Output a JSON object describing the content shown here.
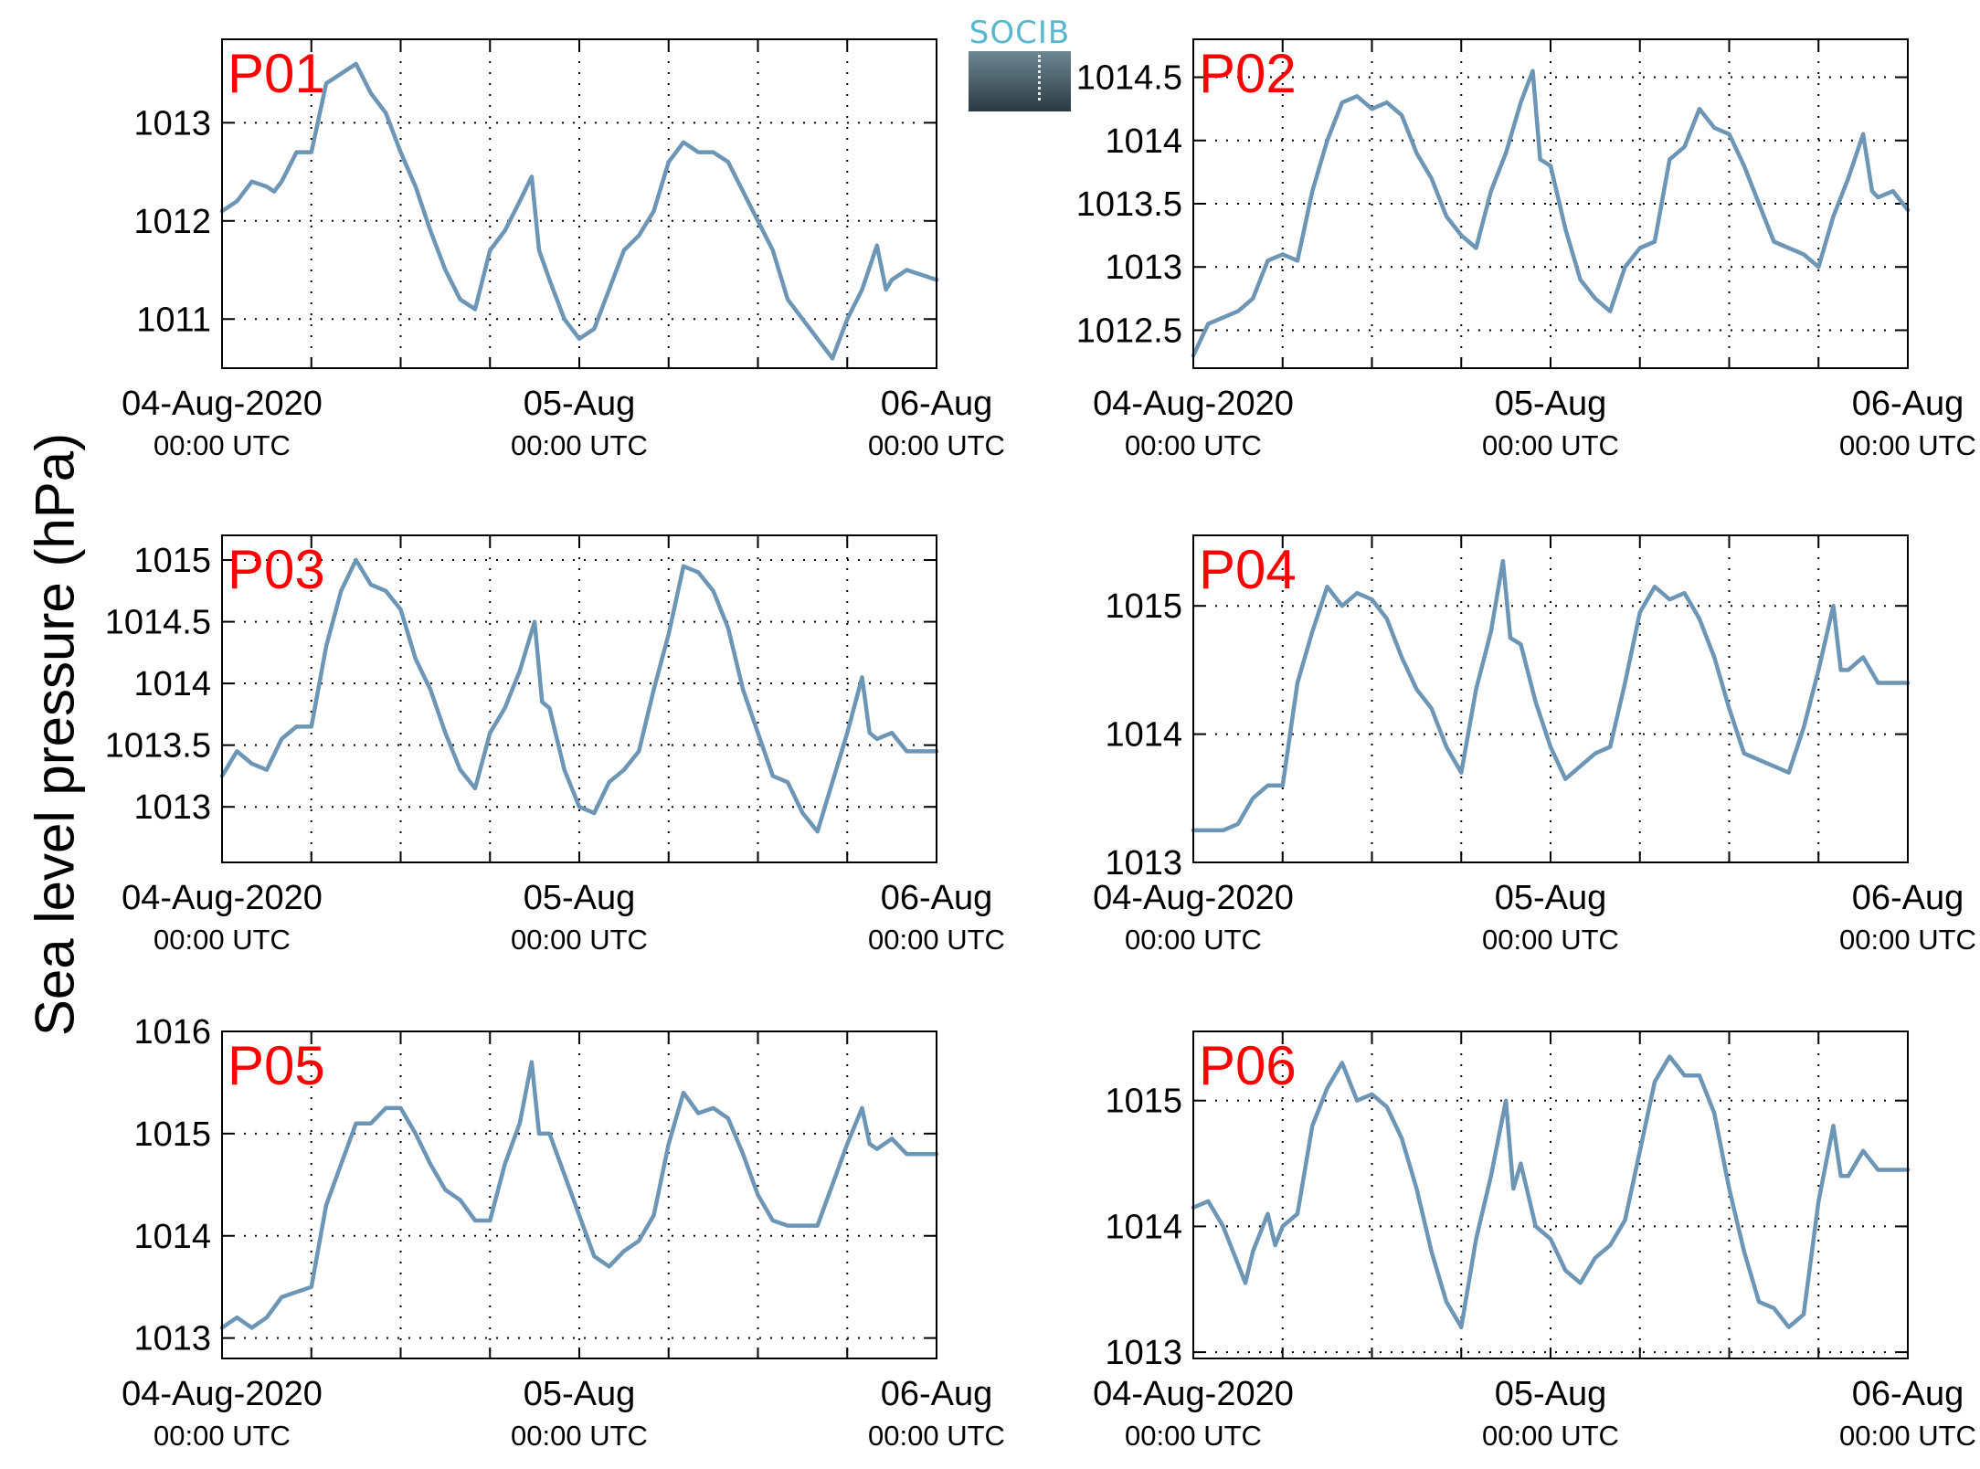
{
  "y_axis_title": "Sea level pressure (hPa)",
  "logo_text": "SOCIB",
  "colors": {
    "line": "#6d96b6",
    "panel_label": "#ff0000",
    "grid": "#000000"
  },
  "chart_data": [
    {
      "type": "line",
      "label": "P01",
      "ylim": [
        1010.5,
        1013.85
      ],
      "yticks": [
        1011,
        1012,
        1013
      ],
      "x_ticks": [
        {
          "line1": "04-Aug-2020",
          "line2": "00:00 UTC"
        },
        {
          "line1": "05-Aug",
          "line2": "00:00 UTC"
        },
        {
          "line1": "06-Aug",
          "line2": "00:00 UTC"
        }
      ],
      "x_range_hours": [
        0,
        48
      ],
      "points": [
        [
          0,
          1012.1
        ],
        [
          1,
          1012.2
        ],
        [
          2,
          1012.4
        ],
        [
          3,
          1012.35
        ],
        [
          3.5,
          1012.3
        ],
        [
          4,
          1012.4
        ],
        [
          5,
          1012.7
        ],
        [
          6,
          1012.7
        ],
        [
          7,
          1013.4
        ],
        [
          8,
          1013.5
        ],
        [
          9,
          1013.6
        ],
        [
          10,
          1013.3
        ],
        [
          11,
          1013.1
        ],
        [
          12,
          1012.7
        ],
        [
          13,
          1012.35
        ],
        [
          14,
          1011.9
        ],
        [
          15,
          1011.5
        ],
        [
          16,
          1011.2
        ],
        [
          17,
          1011.1
        ],
        [
          18,
          1011.7
        ],
        [
          19,
          1011.9
        ],
        [
          20,
          1012.2
        ],
        [
          20.8,
          1012.45
        ],
        [
          21.3,
          1011.7
        ],
        [
          22,
          1011.4
        ],
        [
          23,
          1011.0
        ],
        [
          24,
          1010.8
        ],
        [
          25,
          1010.9
        ],
        [
          26,
          1011.3
        ],
        [
          27,
          1011.7
        ],
        [
          28,
          1011.85
        ],
        [
          29,
          1012.1
        ],
        [
          30,
          1012.6
        ],
        [
          31,
          1012.8
        ],
        [
          32,
          1012.7
        ],
        [
          33,
          1012.7
        ],
        [
          34,
          1012.6
        ],
        [
          35,
          1012.3
        ],
        [
          36,
          1012.0
        ],
        [
          37,
          1011.7
        ],
        [
          38,
          1011.2
        ],
        [
          39,
          1011.0
        ],
        [
          40,
          1010.8
        ],
        [
          41,
          1010.6
        ],
        [
          42,
          1011.0
        ],
        [
          43,
          1011.3
        ],
        [
          44,
          1011.75
        ],
        [
          44.6,
          1011.3
        ],
        [
          45,
          1011.4
        ],
        [
          46,
          1011.5
        ],
        [
          48,
          1011.4
        ]
      ]
    },
    {
      "type": "line",
      "label": "P02",
      "ylim": [
        1012.2,
        1014.8
      ],
      "yticks": [
        1012.5,
        1013,
        1013.5,
        1014,
        1014.5
      ],
      "x_ticks": [
        {
          "line1": "04-Aug-2020",
          "line2": "00:00 UTC"
        },
        {
          "line1": "05-Aug",
          "line2": "00:00 UTC"
        },
        {
          "line1": "06-Aug",
          "line2": "00:00 UTC"
        }
      ],
      "x_range_hours": [
        0,
        48
      ],
      "points": [
        [
          0,
          1012.3
        ],
        [
          1,
          1012.55
        ],
        [
          2,
          1012.6
        ],
        [
          3,
          1012.65
        ],
        [
          4,
          1012.75
        ],
        [
          5,
          1013.05
        ],
        [
          6,
          1013.1
        ],
        [
          7,
          1013.05
        ],
        [
          8,
          1013.6
        ],
        [
          9,
          1014.0
        ],
        [
          10,
          1014.3
        ],
        [
          11,
          1014.35
        ],
        [
          12,
          1014.25
        ],
        [
          13,
          1014.3
        ],
        [
          14,
          1014.2
        ],
        [
          15,
          1013.9
        ],
        [
          16,
          1013.7
        ],
        [
          17,
          1013.4
        ],
        [
          18,
          1013.25
        ],
        [
          19,
          1013.15
        ],
        [
          20,
          1013.6
        ],
        [
          21,
          1013.9
        ],
        [
          22,
          1014.3
        ],
        [
          22.8,
          1014.55
        ],
        [
          23.3,
          1013.85
        ],
        [
          24,
          1013.8
        ],
        [
          25,
          1013.3
        ],
        [
          26,
          1012.9
        ],
        [
          27,
          1012.75
        ],
        [
          28,
          1012.65
        ],
        [
          29,
          1013.0
        ],
        [
          30,
          1013.15
        ],
        [
          31,
          1013.2
        ],
        [
          32,
          1013.85
        ],
        [
          33,
          1013.95
        ],
        [
          34,
          1014.25
        ],
        [
          35,
          1014.1
        ],
        [
          36,
          1014.05
        ],
        [
          37,
          1013.8
        ],
        [
          38,
          1013.5
        ],
        [
          39,
          1013.2
        ],
        [
          40,
          1013.15
        ],
        [
          41,
          1013.1
        ],
        [
          42,
          1013.0
        ],
        [
          43,
          1013.4
        ],
        [
          44,
          1013.7
        ],
        [
          45,
          1014.05
        ],
        [
          45.6,
          1013.6
        ],
        [
          46,
          1013.55
        ],
        [
          47,
          1013.6
        ],
        [
          48,
          1013.45
        ]
      ]
    },
    {
      "type": "line",
      "label": "P03",
      "ylim": [
        1012.55,
        1015.2
      ],
      "yticks": [
        1013,
        1013.5,
        1014,
        1014.5,
        1015
      ],
      "x_ticks": [
        {
          "line1": "04-Aug-2020",
          "line2": "00:00 UTC"
        },
        {
          "line1": "05-Aug",
          "line2": "00:00 UTC"
        },
        {
          "line1": "06-Aug",
          "line2": "00:00 UTC"
        }
      ],
      "x_range_hours": [
        0,
        48
      ],
      "points": [
        [
          0,
          1013.25
        ],
        [
          1,
          1013.45
        ],
        [
          2,
          1013.35
        ],
        [
          3,
          1013.3
        ],
        [
          4,
          1013.55
        ],
        [
          5,
          1013.65
        ],
        [
          6,
          1013.65
        ],
        [
          7,
          1014.3
        ],
        [
          8,
          1014.75
        ],
        [
          9,
          1015.0
        ],
        [
          10,
          1014.8
        ],
        [
          11,
          1014.75
        ],
        [
          12,
          1014.6
        ],
        [
          13,
          1014.2
        ],
        [
          14,
          1013.95
        ],
        [
          15,
          1013.6
        ],
        [
          16,
          1013.3
        ],
        [
          17,
          1013.15
        ],
        [
          18,
          1013.6
        ],
        [
          19,
          1013.8
        ],
        [
          20,
          1014.1
        ],
        [
          21,
          1014.5
        ],
        [
          21.5,
          1013.85
        ],
        [
          22,
          1013.8
        ],
        [
          23,
          1013.3
        ],
        [
          24,
          1013.0
        ],
        [
          25,
          1012.95
        ],
        [
          26,
          1013.2
        ],
        [
          27,
          1013.3
        ],
        [
          28,
          1013.45
        ],
        [
          29,
          1013.95
        ],
        [
          30,
          1014.4
        ],
        [
          31,
          1014.95
        ],
        [
          32,
          1014.9
        ],
        [
          33,
          1014.75
        ],
        [
          34,
          1014.45
        ],
        [
          35,
          1013.95
        ],
        [
          36,
          1013.6
        ],
        [
          37,
          1013.25
        ],
        [
          38,
          1013.2
        ],
        [
          39,
          1012.95
        ],
        [
          40,
          1012.8
        ],
        [
          41,
          1013.2
        ],
        [
          42,
          1013.6
        ],
        [
          43,
          1014.05
        ],
        [
          43.5,
          1013.6
        ],
        [
          44,
          1013.55
        ],
        [
          45,
          1013.6
        ],
        [
          46,
          1013.45
        ],
        [
          48,
          1013.45
        ]
      ]
    },
    {
      "type": "line",
      "label": "P04",
      "ylim": [
        1013.0,
        1015.55
      ],
      "yticks": [
        1013,
        1014,
        1015
      ],
      "x_ticks": [
        {
          "line1": "04-Aug-2020",
          "line2": "00:00 UTC"
        },
        {
          "line1": "05-Aug",
          "line2": "00:00 UTC"
        },
        {
          "line1": "06-Aug",
          "line2": "00:00 UTC"
        }
      ],
      "x_range_hours": [
        0,
        48
      ],
      "points": [
        [
          0,
          1013.25
        ],
        [
          1,
          1013.25
        ],
        [
          2,
          1013.25
        ],
        [
          3,
          1013.3
        ],
        [
          4,
          1013.5
        ],
        [
          5,
          1013.6
        ],
        [
          6,
          1013.6
        ],
        [
          7,
          1014.4
        ],
        [
          8,
          1014.8
        ],
        [
          9,
          1015.15
        ],
        [
          10,
          1015.0
        ],
        [
          11,
          1015.1
        ],
        [
          12,
          1015.05
        ],
        [
          13,
          1014.9
        ],
        [
          14,
          1014.6
        ],
        [
          15,
          1014.35
        ],
        [
          16,
          1014.2
        ],
        [
          17,
          1013.9
        ],
        [
          18,
          1013.7
        ],
        [
          19,
          1014.35
        ],
        [
          20,
          1014.8
        ],
        [
          20.8,
          1015.35
        ],
        [
          21.3,
          1014.75
        ],
        [
          22,
          1014.7
        ],
        [
          23,
          1014.25
        ],
        [
          24,
          1013.9
        ],
        [
          25,
          1013.65
        ],
        [
          26,
          1013.75
        ],
        [
          27,
          1013.85
        ],
        [
          28,
          1013.9
        ],
        [
          29,
          1014.4
        ],
        [
          30,
          1014.95
        ],
        [
          31,
          1015.15
        ],
        [
          32,
          1015.05
        ],
        [
          33,
          1015.1
        ],
        [
          34,
          1014.9
        ],
        [
          35,
          1014.6
        ],
        [
          36,
          1014.2
        ],
        [
          37,
          1013.85
        ],
        [
          38,
          1013.8
        ],
        [
          39,
          1013.75
        ],
        [
          40,
          1013.7
        ],
        [
          41,
          1014.05
        ],
        [
          42,
          1014.5
        ],
        [
          43,
          1015.0
        ],
        [
          43.5,
          1014.5
        ],
        [
          44,
          1014.5
        ],
        [
          45,
          1014.6
        ],
        [
          46,
          1014.4
        ],
        [
          48,
          1014.4
        ]
      ]
    },
    {
      "type": "line",
      "label": "P05",
      "ylim": [
        1012.8,
        1016.0
      ],
      "yticks": [
        1013,
        1014,
        1015,
        1016
      ],
      "x_ticks": [
        {
          "line1": "04-Aug-2020",
          "line2": "00:00 UTC"
        },
        {
          "line1": "05-Aug",
          "line2": "00:00 UTC"
        },
        {
          "line1": "06-Aug",
          "line2": "00:00 UTC"
        }
      ],
      "x_range_hours": [
        0,
        48
      ],
      "points": [
        [
          0,
          1013.1
        ],
        [
          1,
          1013.2
        ],
        [
          2,
          1013.1
        ],
        [
          3,
          1013.2
        ],
        [
          4,
          1013.4
        ],
        [
          5,
          1013.45
        ],
        [
          6,
          1013.5
        ],
        [
          7,
          1014.3
        ],
        [
          8,
          1014.7
        ],
        [
          9,
          1015.1
        ],
        [
          10,
          1015.1
        ],
        [
          11,
          1015.25
        ],
        [
          12,
          1015.25
        ],
        [
          13,
          1015.0
        ],
        [
          14,
          1014.7
        ],
        [
          15,
          1014.45
        ],
        [
          16,
          1014.35
        ],
        [
          17,
          1014.15
        ],
        [
          18,
          1014.15
        ],
        [
          19,
          1014.7
        ],
        [
          20,
          1015.1
        ],
        [
          20.8,
          1015.7
        ],
        [
          21.3,
          1015.0
        ],
        [
          22,
          1015.0
        ],
        [
          23,
          1014.6
        ],
        [
          24,
          1014.2
        ],
        [
          25,
          1013.8
        ],
        [
          26,
          1013.7
        ],
        [
          27,
          1013.85
        ],
        [
          28,
          1013.95
        ],
        [
          29,
          1014.2
        ],
        [
          30,
          1014.9
        ],
        [
          31,
          1015.4
        ],
        [
          32,
          1015.2
        ],
        [
          33,
          1015.25
        ],
        [
          34,
          1015.15
        ],
        [
          35,
          1014.8
        ],
        [
          36,
          1014.4
        ],
        [
          37,
          1014.15
        ],
        [
          38,
          1014.1
        ],
        [
          39,
          1014.1
        ],
        [
          40,
          1014.1
        ],
        [
          41,
          1014.5
        ],
        [
          42,
          1014.9
        ],
        [
          43,
          1015.25
        ],
        [
          43.5,
          1014.9
        ],
        [
          44,
          1014.85
        ],
        [
          45,
          1014.95
        ],
        [
          46,
          1014.8
        ],
        [
          48,
          1014.8
        ]
      ]
    },
    {
      "type": "line",
      "label": "P06",
      "ylim": [
        1012.95,
        1015.55
      ],
      "yticks": [
        1013,
        1014,
        1015
      ],
      "x_ticks": [
        {
          "line1": "04-Aug-2020",
          "line2": "00:00 UTC"
        },
        {
          "line1": "05-Aug",
          "line2": "00:00 UTC"
        },
        {
          "line1": "06-Aug",
          "line2": "00:00 UTC"
        }
      ],
      "x_range_hours": [
        0,
        48
      ],
      "points": [
        [
          0,
          1014.15
        ],
        [
          1,
          1014.2
        ],
        [
          2,
          1014.0
        ],
        [
          3,
          1013.7
        ],
        [
          3.5,
          1013.55
        ],
        [
          4,
          1013.8
        ],
        [
          5,
          1014.1
        ],
        [
          5.5,
          1013.85
        ],
        [
          6,
          1014.0
        ],
        [
          7,
          1014.1
        ],
        [
          8,
          1014.8
        ],
        [
          9,
          1015.1
        ],
        [
          10,
          1015.3
        ],
        [
          11,
          1015.0
        ],
        [
          12,
          1015.05
        ],
        [
          13,
          1014.95
        ],
        [
          14,
          1014.7
        ],
        [
          15,
          1014.3
        ],
        [
          16,
          1013.8
        ],
        [
          17,
          1013.4
        ],
        [
          18,
          1013.2
        ],
        [
          19,
          1013.9
        ],
        [
          20,
          1014.4
        ],
        [
          21,
          1015.0
        ],
        [
          21.5,
          1014.3
        ],
        [
          22,
          1014.5
        ],
        [
          23,
          1014.0
        ],
        [
          24,
          1013.9
        ],
        [
          25,
          1013.65
        ],
        [
          26,
          1013.55
        ],
        [
          27,
          1013.75
        ],
        [
          28,
          1013.85
        ],
        [
          29,
          1014.05
        ],
        [
          30,
          1014.6
        ],
        [
          31,
          1015.15
        ],
        [
          32,
          1015.35
        ],
        [
          33,
          1015.2
        ],
        [
          34,
          1015.2
        ],
        [
          35,
          1014.9
        ],
        [
          36,
          1014.3
        ],
        [
          37,
          1013.8
        ],
        [
          38,
          1013.4
        ],
        [
          39,
          1013.35
        ],
        [
          40,
          1013.2
        ],
        [
          41,
          1013.3
        ],
        [
          42,
          1014.2
        ],
        [
          43,
          1014.8
        ],
        [
          43.5,
          1014.4
        ],
        [
          44,
          1014.4
        ],
        [
          45,
          1014.6
        ],
        [
          46,
          1014.45
        ],
        [
          48,
          1014.45
        ]
      ]
    }
  ]
}
